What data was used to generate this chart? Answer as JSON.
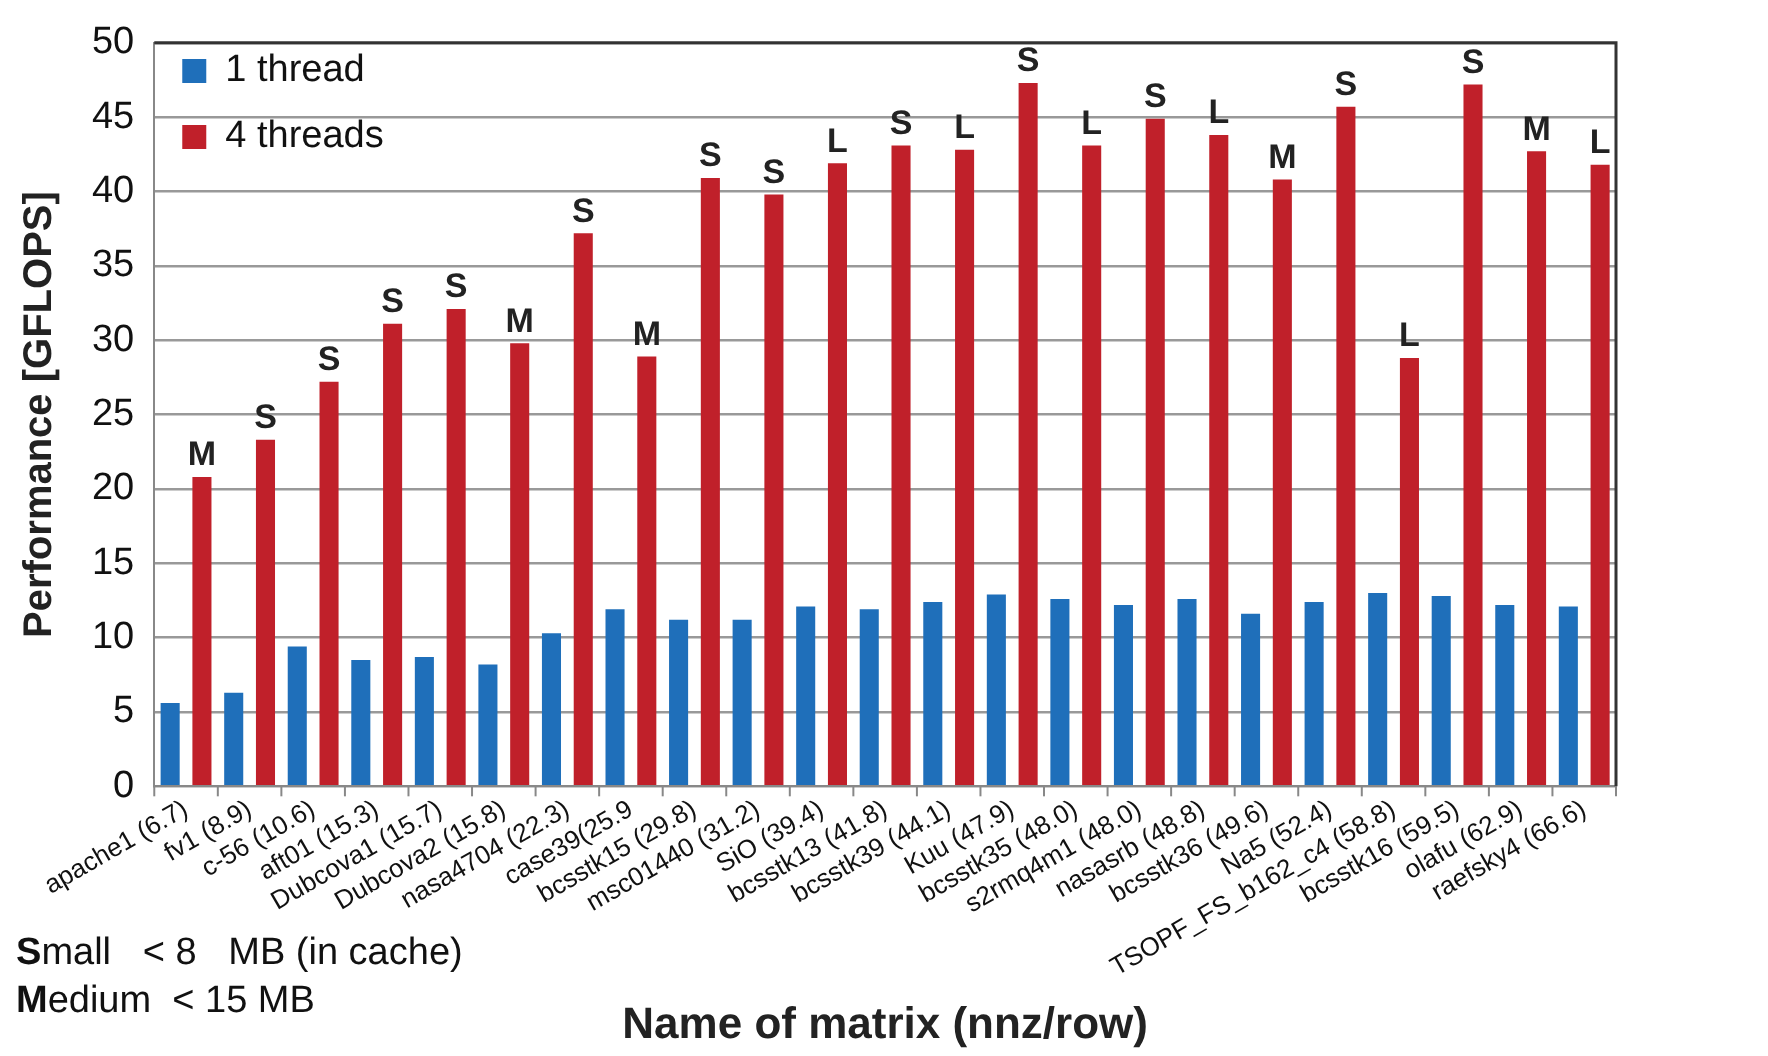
{
  "chart_data": {
    "type": "bar",
    "xlabel": "Name of matrix (nnz/row)",
    "ylabel": "Performance [GFLOPS]",
    "categories": [
      "apache1 (6.7)",
      "fv1 (8.9)",
      "c-56 (10.6)",
      "aft01 (15.3)",
      "Dubcova1 (15.7)",
      "Dubcova2 (15.8)",
      "nasa4704 (22.3)",
      "case39(25.9",
      "bcsstk15 (29.8)",
      "msc01440 (31.2)",
      "SiO (39.4)",
      "bcsstk13 (41.8)",
      "bcsstk39 (44.1)",
      "Kuu (47.9)",
      "bcsstk35 (48.0)",
      "s2rmq4m1 (48.0)",
      "nasasrb (48.8)",
      "bcsstk36 (49.6)",
      "Na5 (52.4)",
      "TSOPF_FS_b162_c4 (58.8)",
      "bcsstk16 (59.5)",
      "olafu (62.9)",
      "raefsky4 (66.6)"
    ],
    "series": [
      {
        "name": "1 thread",
        "color": "#1f6fba",
        "values": [
          5.6,
          6.3,
          9.4,
          8.5,
          8.7,
          8.2,
          10.3,
          11.9,
          11.2,
          11.2,
          12.1,
          11.9,
          12.4,
          12.9,
          12.6,
          12.2,
          12.6,
          11.6,
          12.4,
          13.0,
          12.8,
          12.2,
          12.1
        ]
      },
      {
        "name": "4 threads",
        "color": "#c0202a",
        "values": [
          20.8,
          23.3,
          27.2,
          31.1,
          32.1,
          29.8,
          37.2,
          28.9,
          40.9,
          39.8,
          41.9,
          43.1,
          42.8,
          47.3,
          43.1,
          44.9,
          43.8,
          40.8,
          45.7,
          28.8,
          47.2,
          42.7,
          41.8
        ],
        "value_labels": [
          "M",
          "S",
          "S",
          "S",
          "S",
          "M",
          "S",
          "M",
          "S",
          "S",
          "L",
          "S",
          "L",
          "S",
          "L",
          "S",
          "L",
          "M",
          "S",
          "L",
          "S",
          "M",
          "L"
        ]
      }
    ],
    "ylim": [
      0,
      50
    ],
    "yticks": [
      0,
      5,
      10,
      15,
      20,
      25,
      30,
      35,
      40,
      45,
      50
    ],
    "grid": "y",
    "legend": "top left",
    "annotations": [
      "Small   < 8   MB (in cache)",
      "Medium  < 15 MB"
    ]
  }
}
